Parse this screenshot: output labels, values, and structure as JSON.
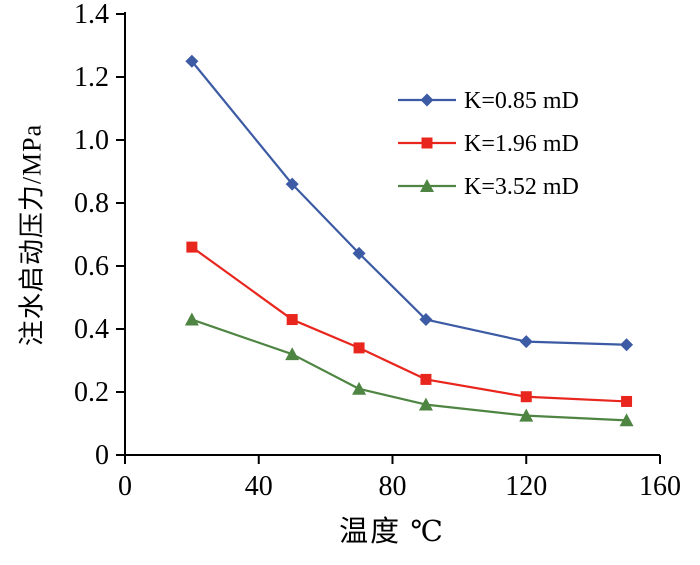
{
  "chart_data": {
    "type": "line",
    "title": "",
    "xlabel": "温度 ℃",
    "ylabel": "注水启动压力/MPa",
    "xlim": [
      0,
      160
    ],
    "ylim": [
      0,
      1.4
    ],
    "xticks": [
      0,
      40,
      80,
      120,
      160
    ],
    "xtick_labels": [
      "0",
      "40",
      "80",
      "120",
      "160"
    ],
    "yticks": [
      0,
      0.2,
      0.4,
      0.6,
      0.8,
      1.0,
      1.2,
      1.4
    ],
    "ytick_labels": [
      "0",
      "0.2",
      "0.4",
      "0.6",
      "0.8",
      "1.0",
      "1.2",
      "1.4"
    ],
    "grid": false,
    "legend_position": "upper-right-inside",
    "x": [
      20,
      50,
      70,
      90,
      120,
      150
    ],
    "series": [
      {
        "name": "K=0.85 mD",
        "marker": "diamond",
        "color": "#3C5BA4",
        "values": [
          1.25,
          0.86,
          0.64,
          0.43,
          0.36,
          0.35
        ]
      },
      {
        "name": "K=1.96 mD",
        "marker": "square",
        "color": "#E8261D",
        "values": [
          0.66,
          0.43,
          0.34,
          0.24,
          0.185,
          0.17
        ]
      },
      {
        "name": "K=3.52 mD",
        "marker": "triangle",
        "color": "#4E8542",
        "values": [
          0.43,
          0.32,
          0.21,
          0.16,
          0.125,
          0.11
        ]
      }
    ],
    "axis_color": "#000000",
    "background_color": "#ffffff"
  }
}
